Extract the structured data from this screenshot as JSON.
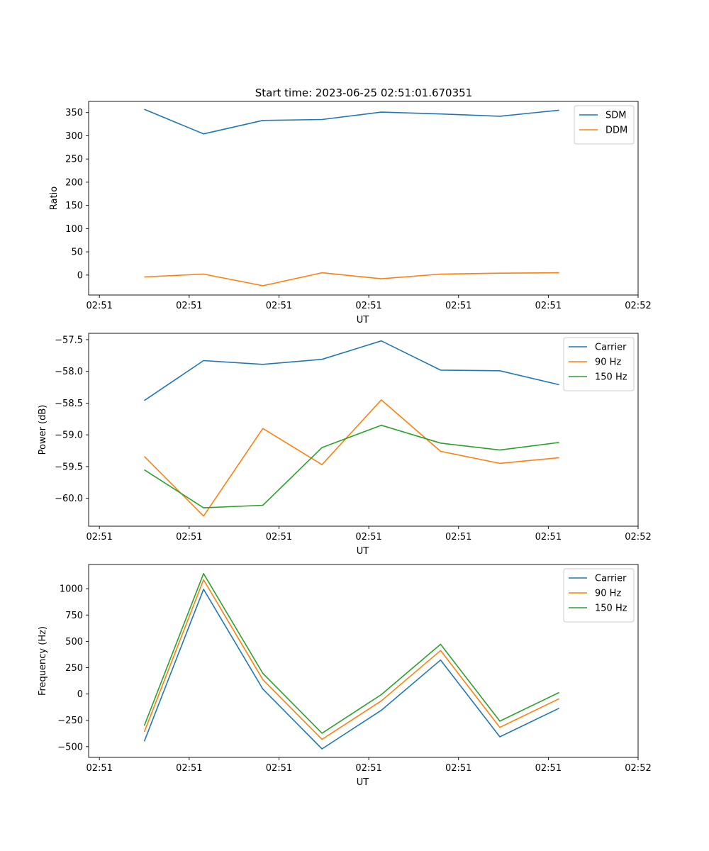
{
  "figure": {
    "title": "Start time: 2023-06-25 02:51:01.670351"
  },
  "chart_data": [
    {
      "type": "line",
      "xlabel": "UT",
      "ylabel": "Ratio",
      "x_tick_labels": [
        "02:51",
        "02:51",
        "02:51",
        "02:51",
        "02:51",
        "02:51",
        "02:52"
      ],
      "x": [
        0.5,
        1.16,
        1.82,
        2.48,
        3.14,
        3.8,
        4.46,
        5.12
      ],
      "xlim": [
        -0.12,
        6.0
      ],
      "ylim": [
        -43,
        374
      ],
      "yticks": [
        0,
        50,
        100,
        150,
        200,
        250,
        300,
        350
      ],
      "legend": "top-right",
      "grid": false,
      "series": [
        {
          "name": "SDM",
          "color": "#1f77b4",
          "values": [
            357,
            304,
            333,
            335,
            351,
            347,
            342,
            355
          ]
        },
        {
          "name": "DDM",
          "color": "#ff7f0e",
          "values": [
            -4,
            2,
            -23,
            5,
            -8,
            2,
            4,
            5
          ]
        }
      ]
    },
    {
      "type": "line",
      "xlabel": "UT",
      "ylabel": "Power (dB)",
      "x_tick_labels": [
        "02:51",
        "02:51",
        "02:51",
        "02:51",
        "02:51",
        "02:51",
        "02:52"
      ],
      "x": [
        0.5,
        1.16,
        1.82,
        2.48,
        3.14,
        3.8,
        4.46,
        5.12
      ],
      "xlim": [
        -0.12,
        6.0
      ],
      "ylim": [
        -60.44,
        -57.4
      ],
      "yticks": [
        -60.0,
        -59.5,
        -59.0,
        -58.5,
        -58.0,
        -57.5
      ],
      "ytick_labels": [
        "−60.0",
        "−59.5",
        "−59.0",
        "−58.5",
        "−58.0",
        "−57.5"
      ],
      "legend": "top-right",
      "grid": false,
      "series": [
        {
          "name": "Carrier",
          "color": "#1f77b4",
          "values": [
            -58.46,
            -57.83,
            -57.89,
            -57.81,
            -57.52,
            -57.98,
            -57.99,
            -58.21
          ]
        },
        {
          "name": "90 Hz",
          "color": "#ff7f0e",
          "values": [
            -59.34,
            -60.28,
            -58.9,
            -59.47,
            -58.45,
            -59.26,
            -59.45,
            -59.36
          ]
        },
        {
          "name": "150 Hz",
          "color": "#2ca02c",
          "values": [
            -59.55,
            -60.15,
            -60.11,
            -59.2,
            -58.85,
            -59.13,
            -59.24,
            -59.12
          ]
        }
      ]
    },
    {
      "type": "line",
      "xlabel": "UT",
      "ylabel": "Frequency (Hz)",
      "x_tick_labels": [
        "02:51",
        "02:51",
        "02:51",
        "02:51",
        "02:51",
        "02:51",
        "02:52"
      ],
      "x": [
        0.5,
        1.16,
        1.82,
        2.48,
        3.14,
        3.8,
        4.46,
        5.12
      ],
      "xlim": [
        -0.12,
        6.0
      ],
      "ylim": [
        -602,
        1230
      ],
      "yticks": [
        -500,
        -250,
        0,
        250,
        500,
        750,
        1000
      ],
      "ytick_labels": [
        "−500",
        "−250",
        "0",
        "250",
        "500",
        "750",
        "1000"
      ],
      "legend": "top-right",
      "grid": false,
      "series": [
        {
          "name": "Carrier",
          "color": "#1f77b4",
          "values": [
            -449,
            995,
            47,
            -521,
            -155,
            323,
            -407,
            -135
          ]
        },
        {
          "name": "90 Hz",
          "color": "#ff7f0e",
          "values": [
            -360,
            1085,
            137,
            -431,
            -65,
            413,
            -317,
            -45
          ]
        },
        {
          "name": "150 Hz",
          "color": "#2ca02c",
          "values": [
            -301,
            1144,
            196,
            -372,
            -6,
            472,
            -258,
            14
          ]
        }
      ]
    }
  ]
}
